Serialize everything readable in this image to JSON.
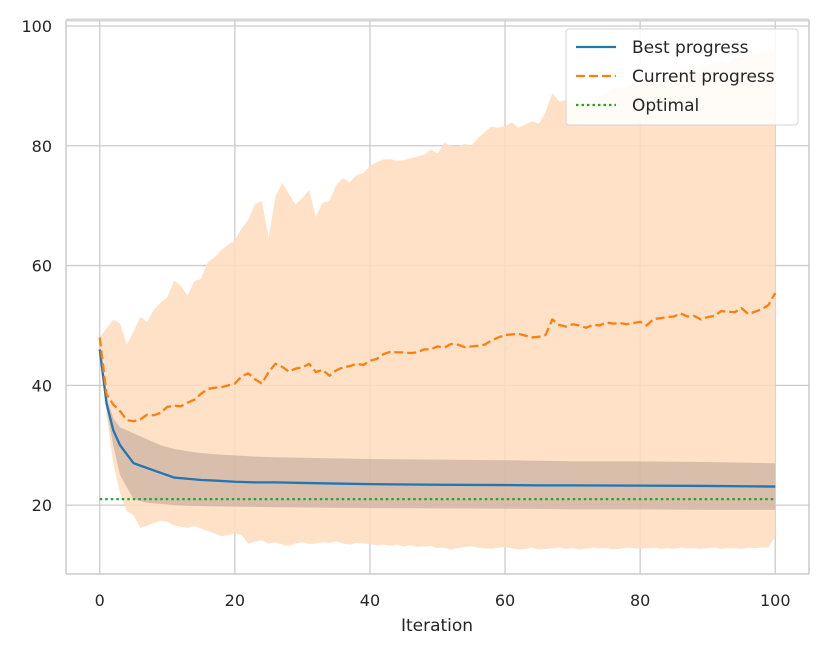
{
  "chart_data": {
    "type": "line",
    "title": "",
    "xlabel": "Iteration",
    "ylabel": "",
    "xlim": [
      -5,
      105
    ],
    "ylim": [
      8.5,
      101
    ],
    "xticks": [
      0,
      20,
      40,
      60,
      80,
      100
    ],
    "yticks": [
      20,
      40,
      60,
      80,
      100
    ],
    "grid": true,
    "legend_position": "top-right",
    "series": [
      {
        "name": "Best progress",
        "color": "#1f77b4",
        "linestyle": "solid",
        "x": [
          0,
          1,
          2,
          3,
          5,
          7,
          9,
          11,
          13,
          15,
          17,
          20,
          23,
          26,
          30,
          35,
          40,
          50,
          60,
          65,
          70,
          80,
          90,
          95,
          100
        ],
        "values": [
          46,
          37,
          32.5,
          30,
          27,
          26.2,
          25.4,
          24.6,
          24.4,
          24.2,
          24.1,
          23.9,
          23.8,
          23.8,
          23.7,
          23.6,
          23.5,
          23.4,
          23.35,
          23.3,
          23.3,
          23.25,
          23.2,
          23.15,
          23.1
        ],
        "band_lower": [
          46,
          36,
          30,
          25,
          21,
          20.4,
          20.2,
          20.0,
          19.9,
          19.85,
          19.8,
          19.75,
          19.7,
          19.65,
          19.6,
          19.55,
          19.5,
          19.45,
          19.4,
          19.35,
          19.3,
          19.3,
          19.2,
          19.2,
          19.2
        ],
        "band_upper": [
          46,
          38,
          34.5,
          33,
          32,
          31,
          30,
          29.4,
          29,
          28.7,
          28.5,
          28.3,
          28.1,
          28,
          27.9,
          27.8,
          27.7,
          27.6,
          27.5,
          27.4,
          27.3,
          27.3,
          27.2,
          27.1,
          27.0
        ],
        "band_color": "#b9a393"
      },
      {
        "name": "Current progress",
        "color": "#ff7f0e",
        "linestyle": "dashed",
        "x": [
          0,
          1,
          2,
          3,
          4,
          5,
          6,
          7,
          8,
          9,
          10,
          11,
          12,
          13,
          14,
          15,
          16,
          17,
          18,
          19,
          20,
          21,
          22,
          23,
          24,
          25,
          26,
          27,
          28,
          29,
          30,
          31,
          32,
          33,
          34,
          35,
          36,
          37,
          38,
          39,
          40,
          41,
          42,
          43,
          44,
          45,
          46,
          47,
          48,
          49,
          50,
          51,
          52,
          53,
          54,
          55,
          56,
          57,
          58,
          59,
          60,
          61,
          62,
          63,
          64,
          65,
          66,
          67,
          68,
          69,
          70,
          71,
          72,
          73,
          74,
          75,
          76,
          77,
          78,
          79,
          80,
          81,
          82,
          83,
          84,
          85,
          86,
          87,
          88,
          89,
          90,
          91,
          92,
          93,
          94,
          95,
          96,
          97,
          98,
          99,
          100
        ],
        "values": [
          48,
          38.5,
          36.8,
          35.7,
          34.2,
          34.0,
          34.3,
          35.1,
          35.0,
          35.4,
          36.4,
          36.6,
          36.5,
          37.1,
          37.6,
          38.6,
          39.4,
          39.6,
          39.7,
          40.0,
          40.3,
          41.5,
          42.0,
          41.0,
          40.3,
          42.2,
          43.6,
          43.1,
          42.3,
          42.8,
          43.0,
          43.6,
          42.2,
          42.6,
          41.6,
          42.5,
          43.0,
          43.2,
          43.6,
          43.4,
          44.1,
          44.4,
          45.2,
          45.6,
          45.5,
          45.5,
          45.4,
          45.5,
          46.0,
          46.0,
          46.5,
          46.3,
          46.9,
          46.8,
          46.4,
          46.5,
          46.6,
          46.8,
          47.5,
          48.0,
          48.4,
          48.5,
          48.6,
          48.3,
          48.0,
          48.1,
          48.4,
          51.0,
          50.1,
          49.8,
          50.2,
          50.0,
          49.6,
          50.1,
          50.0,
          50.5,
          50.3,
          50.4,
          50.2,
          50.4,
          50.6,
          50.0,
          51.1,
          51.2,
          51.4,
          51.5,
          52.0,
          51.5,
          51.6,
          51.0,
          51.4,
          51.6,
          52.4,
          52.3,
          52.2,
          52.9,
          51.9,
          52.3,
          52.7,
          53.4,
          55.4
        ],
        "band_lower": [
          48,
          35,
          27,
          22,
          19,
          18.3,
          16.2,
          16.6,
          17.0,
          17.4,
          17.2,
          16.6,
          16.4,
          16.2,
          16.5,
          16.1,
          15.7,
          15.3,
          14.8,
          15.0,
          15.3,
          15.0,
          13.6,
          13.9,
          14.1,
          13.6,
          13.8,
          13.4,
          13.2,
          13.6,
          13.8,
          13.5,
          13.6,
          13.8,
          13.7,
          13.9,
          13.6,
          13.4,
          13.7,
          13.6,
          13.5,
          13.3,
          13.4,
          13.2,
          13.4,
          13.1,
          13.3,
          13.0,
          13.1,
          13.2,
          12.8,
          12.9,
          12.6,
          12.8,
          13.0,
          13.1,
          12.9,
          12.8,
          12.7,
          12.9,
          13.0,
          12.8,
          12.6,
          12.7,
          12.9,
          12.6,
          12.7,
          12.8,
          12.9,
          12.7,
          12.8,
          12.6,
          12.7,
          12.9,
          12.8,
          12.8,
          12.6,
          12.7,
          12.9,
          12.8,
          12.7,
          12.8,
          12.9,
          12.7,
          12.8,
          12.7,
          12.9,
          12.8,
          12.8,
          12.7,
          12.8,
          12.9,
          12.7,
          12.8,
          12.8,
          12.7,
          12.9,
          12.8,
          12.9,
          12.9,
          14.8
        ],
        "band_upper": [
          48,
          49.5,
          51,
          50.3,
          46.8,
          49.0,
          51.4,
          50.6,
          52.6,
          53.8,
          54.7,
          57.5,
          56.6,
          55.0,
          57.4,
          57.8,
          60.6,
          61.4,
          62.6,
          63.5,
          64.2,
          66.2,
          67.7,
          70.3,
          70.8,
          64.6,
          71.5,
          73.8,
          72.0,
          70.2,
          71.3,
          72.6,
          68.1,
          70.5,
          70.8,
          73.4,
          74.6,
          73.9,
          75.1,
          75.4,
          76.6,
          77.3,
          77.7,
          77.8,
          77.5,
          77.6,
          77.9,
          78.2,
          78.5,
          79.4,
          78.7,
          80.5,
          80.0,
          79.9,
          80.3,
          80.0,
          81.3,
          82.3,
          83.2,
          83.0,
          83.3,
          83.9,
          83.0,
          83.6,
          84.1,
          83.7,
          85.6,
          88.8,
          87.4,
          87.6,
          87.1,
          88.0,
          87.1,
          87.5,
          88.3,
          88.7,
          89.6,
          89.9,
          89.6,
          90.5,
          90.7,
          91.0,
          91.3,
          90.4,
          92.1,
          92.0,
          92.8,
          92.6,
          92.8,
          93.5,
          93.2,
          94.0,
          94.1,
          93.7,
          94.6,
          94.9,
          95.2,
          95.4,
          95.6,
          95.7,
          96.0
        ],
        "band_color": "#ffdcbe"
      },
      {
        "name": "Optimal",
        "color": "#2ca02c",
        "linestyle": "dotted",
        "x": [
          0,
          100
        ],
        "values": [
          21,
          21
        ]
      }
    ]
  }
}
